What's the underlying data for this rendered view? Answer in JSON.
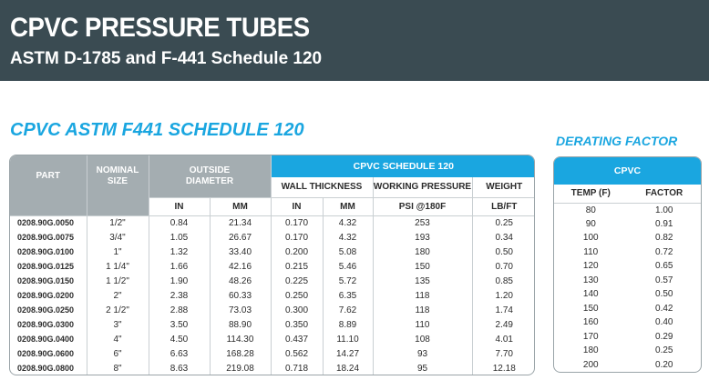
{
  "banner": {
    "title": "CPVC PRESSURE TUBES",
    "subtitle": "ASTM D-1785 and F-441 Schedule 120"
  },
  "section_title": "CPVC ASTM F441 SCHEDULE 120",
  "main_table": {
    "headers": {
      "part": "PART",
      "nominal_size": "NOMINAL SIZE",
      "outside_diameter": "OUTSIDE DIAMETER",
      "group": "CPVC SCHEDULE 120",
      "wall_thickness": "WALL THICKNESS",
      "working_pressure": "WORKING PRESSURE",
      "weight": "WEIGHT"
    },
    "units": [
      "IN",
      "MM",
      "IN",
      "MM",
      "PSI @180F",
      "LB/FT"
    ],
    "rows": [
      [
        "0208.90G.0050",
        "1/2\"",
        "0.84",
        "21.34",
        "0.170",
        "4.32",
        "253",
        "0.25"
      ],
      [
        "0208.90G.0075",
        "3/4\"",
        "1.05",
        "26.67",
        "0.170",
        "4.32",
        "193",
        "0.34"
      ],
      [
        "0208.90G.0100",
        "1\"",
        "1.32",
        "33.40",
        "0.200",
        "5.08",
        "180",
        "0.50"
      ],
      [
        "0208.90G.0125",
        "1 1/4\"",
        "1.66",
        "42.16",
        "0.215",
        "5.46",
        "150",
        "0.70"
      ],
      [
        "0208.90G.0150",
        "1 1/2\"",
        "1.90",
        "48.26",
        "0.225",
        "5.72",
        "135",
        "0.85"
      ],
      [
        "0208.90G.0200",
        "2\"",
        "2.38",
        "60.33",
        "0.250",
        "6.35",
        "118",
        "1.20"
      ],
      [
        "0208.90G.0250",
        "2 1/2\"",
        "2.88",
        "73.03",
        "0.300",
        "7.62",
        "118",
        "1.74"
      ],
      [
        "0208.90G.0300",
        "3\"",
        "3.50",
        "88.90",
        "0.350",
        "8.89",
        "110",
        "2.49"
      ],
      [
        "0208.90G.0400",
        "4\"",
        "4.50",
        "114.30",
        "0.437",
        "11.10",
        "108",
        "4.01"
      ],
      [
        "0208.90G.0600",
        "6\"",
        "6.63",
        "168.28",
        "0.562",
        "14.27",
        "93",
        "7.70"
      ],
      [
        "0208.90G.0800",
        "8\"",
        "8.63",
        "219.08",
        "0.718",
        "18.24",
        "95",
        "12.18"
      ]
    ]
  },
  "derating": {
    "title": "DERATING FACTOR",
    "header": "CPVC",
    "col_temp": "TEMP (F)",
    "col_factor": "FACTOR",
    "rows": [
      [
        "80",
        "1.00"
      ],
      [
        "90",
        "0.91"
      ],
      [
        "100",
        "0.82"
      ],
      [
        "110",
        "0.72"
      ],
      [
        "120",
        "0.65"
      ],
      [
        "130",
        "0.57"
      ],
      [
        "140",
        "0.50"
      ],
      [
        "150",
        "0.42"
      ],
      [
        "160",
        "0.40"
      ],
      [
        "170",
        "0.29"
      ],
      [
        "180",
        "0.25"
      ],
      [
        "200",
        "0.20"
      ]
    ]
  },
  "colors": {
    "banner": "#3a4b52",
    "accent_blue": "#1aa6e0",
    "header_gray": "#a4adb1"
  }
}
